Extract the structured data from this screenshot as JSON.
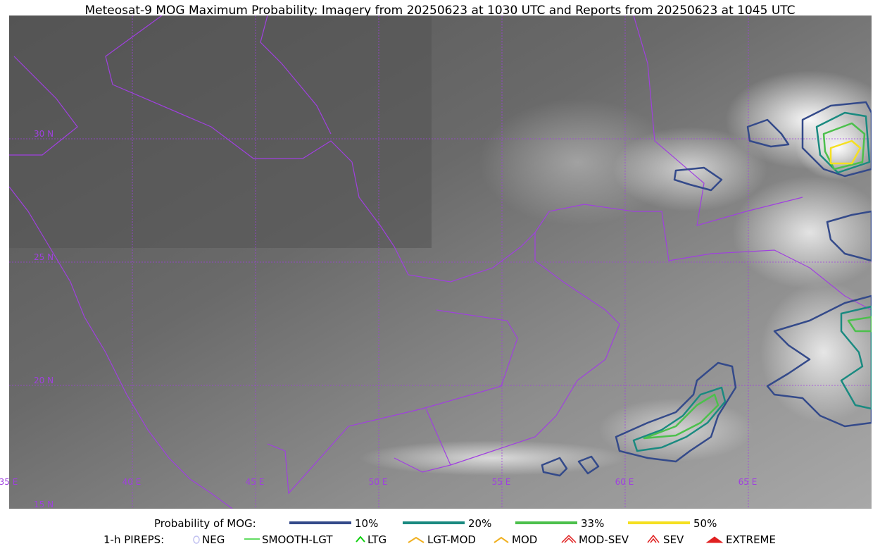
{
  "title": "Meteosat-9 MOG Maximum Probability: Imagery from 20250623 at 1030 UTC and Reports from 20250623 at 1045 UTC",
  "map": {
    "lon_labels": [
      "35 E",
      "40 E",
      "45 E",
      "50 E",
      "55 E",
      "60 E",
      "65 E"
    ],
    "lat_labels": [
      "30 N",
      "25 N",
      "20 N",
      "15 N"
    ]
  },
  "legend": {
    "probability": {
      "title": "Probability of MOG:",
      "items": [
        {
          "label": "10%",
          "color": "#344a8a"
        },
        {
          "label": "20%",
          "color": "#1a8a80"
        },
        {
          "label": "33%",
          "color": "#4cc04c"
        },
        {
          "label": "50%",
          "color": "#f5e020"
        }
      ]
    },
    "pireps": {
      "title": "1-h PIREPS:",
      "items": [
        {
          "label": "NEG",
          "color": "#c0c0f0"
        },
        {
          "label": "SMOOTH-LGT",
          "color": "#30d030"
        },
        {
          "label": "LTG",
          "color": "#10d010"
        },
        {
          "label": "LGT-MOD",
          "color": "#f0b020"
        },
        {
          "label": "MOD",
          "color": "#f0b020"
        },
        {
          "label": "MOD-SEV",
          "color": "#e02020"
        },
        {
          "label": "SEV",
          "color": "#e02020"
        },
        {
          "label": "EXTREME",
          "color": "#e02020"
        }
      ]
    }
  }
}
